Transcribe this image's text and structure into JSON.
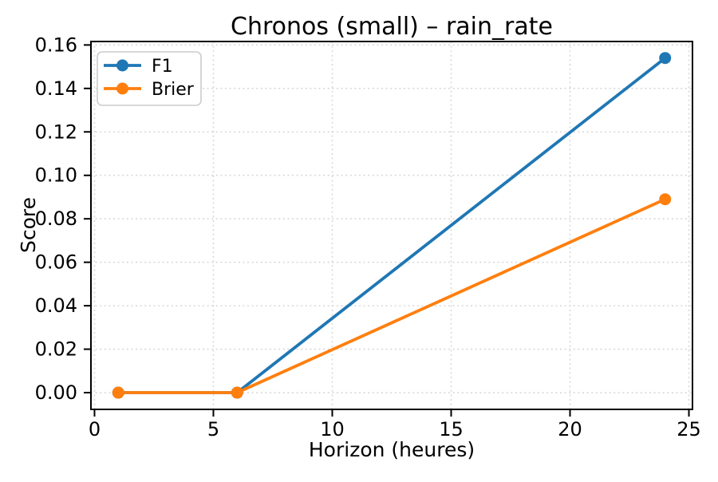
{
  "chart_data": {
    "type": "line",
    "title": "Chronos (small) – rain_rate",
    "xlabel": "Horizon (heures)",
    "ylabel": "Score",
    "x": [
      1,
      6,
      24
    ],
    "series": [
      {
        "name": "F1",
        "color": "#1f77b4",
        "values": [
          0.0,
          0.0,
          0.154
        ]
      },
      {
        "name": "Brier",
        "color": "#ff7f0e",
        "values": [
          0.0,
          0.0,
          0.089
        ]
      }
    ],
    "xticks": [
      0,
      5,
      10,
      15,
      20,
      25
    ],
    "xtick_labels": [
      "0",
      "5",
      "10",
      "15",
      "20",
      "25"
    ],
    "yticks": [
      0.0,
      0.02,
      0.04,
      0.06,
      0.08,
      0.1,
      0.12,
      0.14,
      0.16
    ],
    "ytick_labels": [
      "0.00",
      "0.02",
      "0.04",
      "0.06",
      "0.08",
      "0.10",
      "0.12",
      "0.14",
      "0.16"
    ],
    "xlim": [
      -0.15,
      25.15
    ],
    "ylim": [
      -0.0077,
      0.1616
    ],
    "grid": true,
    "grid_style": "dotted",
    "marker": "o",
    "legend": {
      "position": "upper-left",
      "entries": [
        "F1",
        "Brier"
      ]
    },
    "colors": {
      "background": "#ffffff",
      "text": "#000000",
      "grid": "#d8d8d8",
      "spine": "#000000",
      "legend_border": "#cccccc",
      "legend_fill": "#ffffff"
    }
  }
}
